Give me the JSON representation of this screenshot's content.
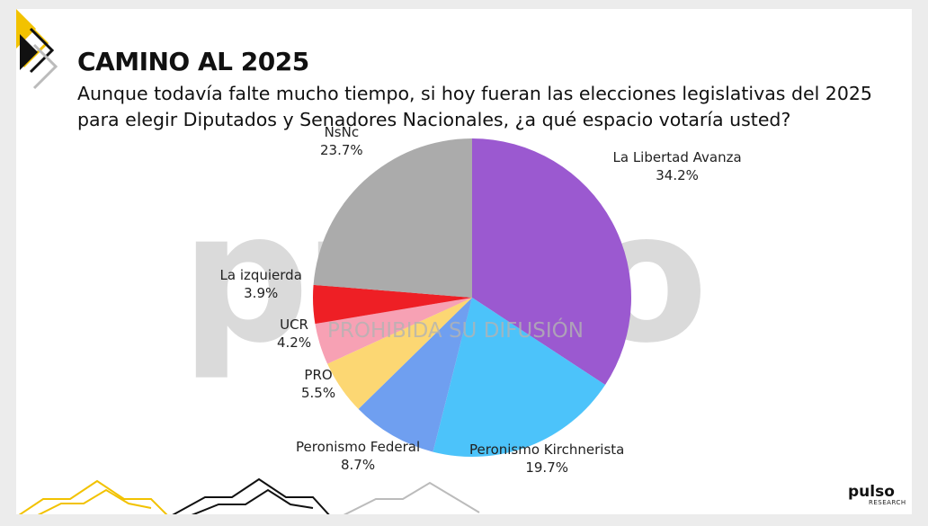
{
  "title": "CAMINO AL 2025",
  "subtitle": "Aunque todavía falte mucho tiempo, si hoy fueran las elecciones legislativas del 2025 para elegir Diputados y Senadores Nacionales, ¿a qué espacio votaría usted?",
  "watermark": {
    "logo": "pulso",
    "text": "PROHIBIDA SU DIFUSIÓN"
  },
  "brand": {
    "name": "pulso",
    "tagline": "RESEARCH"
  },
  "colors": {
    "accent": "#f2c200",
    "dark": "#111111"
  },
  "chart_data": {
    "type": "pie",
    "slices": [
      {
        "label": "La Libertad Avanza",
        "value": 34.2,
        "display": "34.2%",
        "color": "#9b59d0"
      },
      {
        "label": "Peronismo Kirchnerista",
        "value": 19.7,
        "display": "19.7%",
        "color": "#4cc3fa"
      },
      {
        "label": "Peronismo Federal",
        "value": 8.7,
        "display": "8.7%",
        "color": "#6f9ff0"
      },
      {
        "label": "PRO",
        "value": 5.5,
        "display": "5.5%",
        "color": "#fcd773"
      },
      {
        "label": "UCR",
        "value": 4.2,
        "display": "4.2%",
        "color": "#f7a1b4"
      },
      {
        "label": "La izquierda",
        "value": 3.9,
        "display": "3.9%",
        "color": "#ee1f25"
      },
      {
        "label": "NsNc",
        "value": 23.7,
        "display": "23.7%",
        "color": "#ababab"
      }
    ],
    "start_angle_deg": 0,
    "direction": "clockwise"
  }
}
